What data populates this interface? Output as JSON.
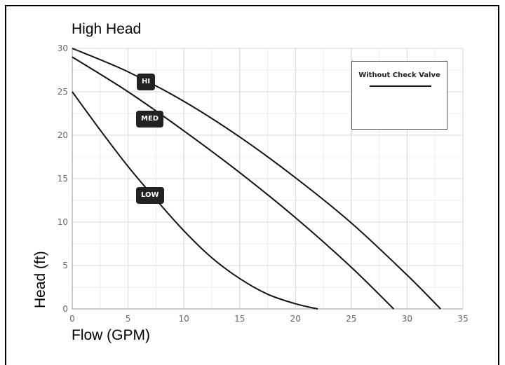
{
  "chart_data": {
    "type": "line",
    "title": "High Head",
    "xlabel": "Flow (GPM)",
    "ylabel": "Head (ft)",
    "xlim": [
      0,
      35
    ],
    "ylim": [
      0,
      30
    ],
    "x_ticks": [
      0,
      5,
      10,
      15,
      20,
      25,
      30,
      35
    ],
    "y_ticks": [
      0,
      5,
      10,
      15,
      20,
      25,
      30
    ],
    "grid": true,
    "legend": {
      "label": "Without Check Valve",
      "placement": "top-right"
    },
    "series": [
      {
        "name": "HI",
        "x": [
          0,
          5,
          10,
          15,
          20,
          25,
          30,
          33
        ],
        "y": [
          30,
          27.3,
          23.9,
          19.8,
          15.1,
          9.9,
          3.9,
          0
        ]
      },
      {
        "name": "MED",
        "x": [
          0,
          5,
          10,
          15,
          20,
          25,
          28.8
        ],
        "y": [
          29,
          25,
          20.5,
          15.7,
          10.5,
          4.8,
          0
        ]
      },
      {
        "name": "LOW",
        "x": [
          0,
          2.5,
          5,
          7.5,
          10,
          12.5,
          15,
          17.5,
          20,
          22
        ],
        "y": [
          25,
          20.6,
          16.4,
          12.6,
          9,
          5.9,
          3.5,
          1.7,
          0.6,
          0
        ]
      }
    ]
  }
}
